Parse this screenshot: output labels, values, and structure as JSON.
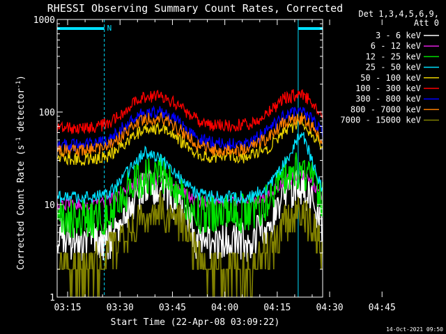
{
  "chart_data": {
    "type": "line",
    "title": "RHESSI Observing Summary Count Rates, Corrected",
    "xlabel": "Start Time (22-Apr-08 03:09:22)",
    "ylabel_main": "Corrected Count Rate (s",
    "ylabel_sup1": "-1",
    "ylabel_mid": " detector",
    "ylabel_sup2": "-1",
    "ylabel_end": ")",
    "footer": "14-Oct-2021 09:50",
    "y_scale": "log",
    "ylim": [
      1,
      1000
    ],
    "y_ticks": [
      "1",
      "10",
      "100",
      "1000"
    ],
    "x_ticks": [
      "03:15",
      "03:30",
      "03:45",
      "04:00",
      "04:15",
      "04:30",
      "04:45"
    ],
    "x_range_minutes": [
      12,
      88
    ],
    "legend_header": [
      "Det 1,3,4,5,6,9,",
      "Att 0"
    ],
    "legend_placement": "right",
    "annotation_n": "N",
    "series": [
      {
        "name": "3 - 6 keV",
        "color": "#ffffff",
        "values": [
          5,
          4,
          4,
          4,
          8,
          15,
          16,
          9,
          4,
          4,
          4,
          4,
          6,
          11,
          16,
          12,
          6
        ]
      },
      {
        "name": "6 - 12 keV",
        "color": "#e020e0",
        "values": [
          10,
          10,
          10,
          11,
          15,
          19,
          19,
          14,
          11,
          11,
          11,
          11,
          12,
          18,
          21,
          17,
          12
        ]
      },
      {
        "name": "12 - 25 keV",
        "color": "#00e000",
        "values": [
          7,
          7,
          7,
          8,
          14,
          20,
          21,
          13,
          8,
          8,
          8,
          8,
          11,
          20,
          24,
          19,
          11
        ]
      },
      {
        "name": "25 - 50 keV",
        "color": "#00e0ff",
        "values": [
          12,
          12,
          12,
          13,
          22,
          38,
          30,
          20,
          13,
          12,
          12,
          12,
          15,
          28,
          60,
          30,
          14
        ]
      },
      {
        "name": "50 - 100 keV",
        "color": "#e8d000",
        "values": [
          31,
          31,
          31,
          34,
          48,
          65,
          66,
          50,
          36,
          32,
          32,
          33,
          40,
          60,
          78,
          58,
          42
        ]
      },
      {
        "name": "100 - 300 keV",
        "color": "#ff0000",
        "values": [
          68,
          67,
          68,
          75,
          110,
          148,
          150,
          115,
          82,
          72,
          72,
          74,
          95,
          140,
          160,
          125,
          82
        ]
      },
      {
        "name": "300 - 800 keV",
        "color": "#0000ff",
        "values": [
          44,
          44,
          45,
          50,
          75,
          98,
          100,
          78,
          52,
          46,
          45,
          47,
          62,
          90,
          102,
          82,
          58
        ]
      },
      {
        "name": "800 - 7000 keV",
        "color": "#ff8000",
        "values": [
          38,
          38,
          39,
          43,
          63,
          84,
          85,
          65,
          44,
          39,
          38,
          40,
          52,
          76,
          86,
          70,
          48
        ]
      },
      {
        "name": "7000 - 15000 keV",
        "color": "#808000",
        "values": [
          2,
          2,
          2,
          3,
          5,
          8,
          9,
          6,
          3,
          2,
          2,
          2,
          3,
          6,
          8,
          6,
          3
        ]
      }
    ],
    "x_minutes": [
      12,
      17,
      22,
      27,
      32,
      37,
      42,
      47,
      52,
      57,
      62,
      67,
      72,
      77,
      82,
      85,
      88
    ],
    "night_intervals": [
      [
        12,
        25.5
      ],
      [
        81,
        88
      ]
    ],
    "saa_markers": [
      12,
      25.5,
      81,
      88
    ]
  }
}
